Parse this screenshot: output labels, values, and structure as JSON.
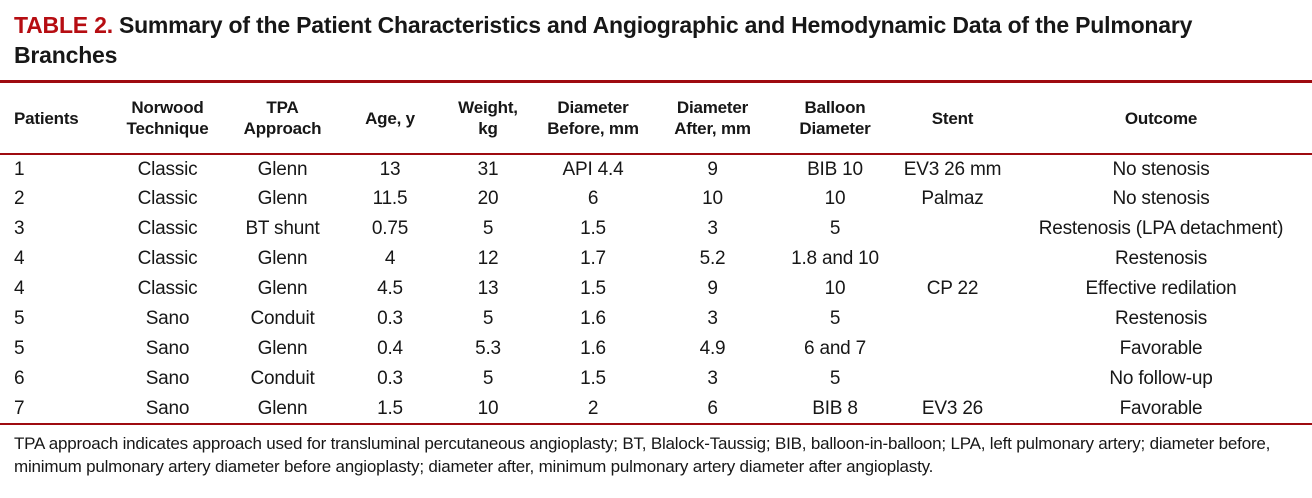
{
  "title": {
    "label": "TABLE 2.",
    "text": "Summary of the Patient Characteristics and Angiographic and Hemodynamic Data of the Pulmonary Branches"
  },
  "colors": {
    "accent_red": "#b60d12",
    "rule_red": "#9e0b10",
    "text": "#171717",
    "background": "#ffffff"
  },
  "table": {
    "columns": [
      "Patients",
      "Norwood\nTechnique",
      "TPA\nApproach",
      "Age, y",
      "Weight,\nkg",
      "Diameter\nBefore, mm",
      "Diameter\nAfter, mm",
      "Balloon\nDiameter",
      "Stent",
      "Outcome"
    ],
    "rows": [
      [
        "1",
        "Classic",
        "Glenn",
        "13",
        "31",
        "API 4.4",
        "9",
        "BIB 10",
        "EV3 26 mm",
        "No stenosis"
      ],
      [
        "2",
        "Classic",
        "Glenn",
        "11.5",
        "20",
        "6",
        "10",
        "10",
        "Palmaz",
        "No stenosis"
      ],
      [
        "3",
        "Classic",
        "BT shunt",
        "0.75",
        "5",
        "1.5",
        "3",
        "5",
        "",
        "Restenosis (LPA detachment)"
      ],
      [
        "4",
        "Classic",
        "Glenn",
        "4",
        "12",
        "1.7",
        "5.2",
        "1.8 and 10",
        "",
        "Restenosis"
      ],
      [
        "4",
        "Classic",
        "Glenn",
        "4.5",
        "13",
        "1.5",
        "9",
        "10",
        "CP 22",
        "Effective redilation"
      ],
      [
        "5",
        "Sano",
        "Conduit",
        "0.3",
        "5",
        "1.6",
        "3",
        "5",
        "",
        "Restenosis"
      ],
      [
        "5",
        "Sano",
        "Glenn",
        "0.4",
        "5.3",
        "1.6",
        "4.9",
        "6 and 7",
        "",
        "Favorable"
      ],
      [
        "6",
        "Sano",
        "Conduit",
        "0.3",
        "5",
        "1.5",
        "3",
        "5",
        "",
        "No follow-up"
      ],
      [
        "7",
        "Sano",
        "Glenn",
        "1.5",
        "10",
        "2",
        "6",
        "BIB 8",
        "EV3 26",
        "Favorable"
      ]
    ]
  },
  "footnote": "TPA approach indicates approach used for transluminal percutaneous angioplasty; BT, Blalock-Taussig; BIB, balloon-in-balloon; LPA, left pulmonary artery; diameter before, minimum pulmonary artery diameter before angioplasty; diameter after, minimum pulmonary artery diameter after angioplasty."
}
